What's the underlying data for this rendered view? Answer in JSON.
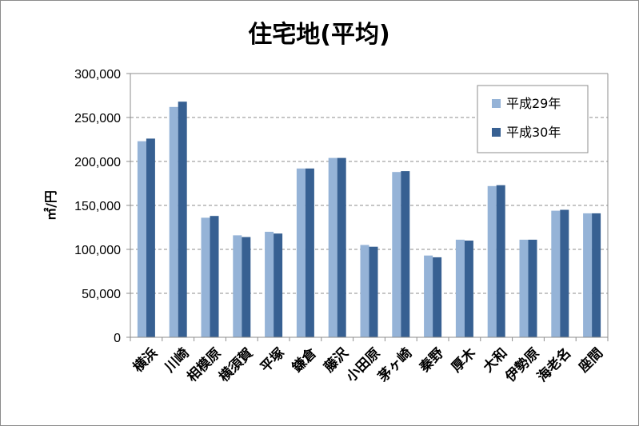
{
  "chart_data": {
    "type": "bar",
    "title": "住宅地(平均)",
    "ylabel": "㎡/円",
    "xlabel": "",
    "ylim": [
      0,
      300000
    ],
    "yticks": [
      0,
      50000,
      100000,
      150000,
      200000,
      250000,
      300000
    ],
    "ytick_labels": [
      "0",
      "50,000",
      "100,000",
      "150,000",
      "200,000",
      "250,000",
      "300,000"
    ],
    "grid": "horizontal-dashed",
    "legend_position": "top-right",
    "categories": [
      "横浜",
      "川崎",
      "相模原",
      "横須賀",
      "平塚",
      "鎌倉",
      "藤沢",
      "小田原",
      "茅ヶ崎",
      "秦野",
      "厚木",
      "大和",
      "伊勢原",
      "海老名",
      "座間"
    ],
    "series": [
      {
        "name": "平成29年",
        "color": "#95b3d7",
        "values": [
          223000,
          262000,
          136000,
          116000,
          120000,
          192000,
          204000,
          105000,
          188000,
          93000,
          111000,
          172000,
          111000,
          144000,
          141000
        ]
      },
      {
        "name": "平成30年",
        "color": "#376092",
        "values": [
          226000,
          268000,
          138000,
          114000,
          118000,
          192000,
          204000,
          103000,
          189000,
          91000,
          110000,
          173000,
          111000,
          145000,
          141000
        ]
      }
    ]
  }
}
